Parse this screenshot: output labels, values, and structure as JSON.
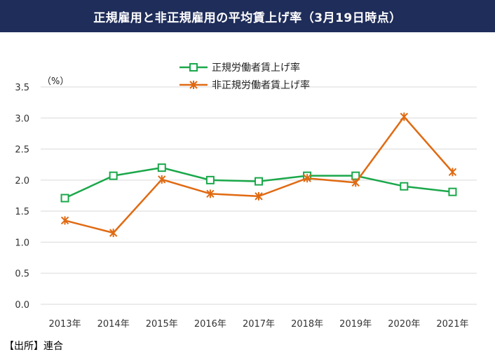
{
  "title": "正規雇用と非正規雇用の平均賃上げ率（3月19日時点）",
  "source": "【出所】連合",
  "colors": {
    "banner": "#1f2d5a",
    "regular": "#1aa84a",
    "nonregular": "#e06a12",
    "grid": "#d9d9d9"
  },
  "chart_data": {
    "type": "line",
    "title": "正規雇用と非正規雇用の平均賃上げ率（3月19日時点）",
    "ylabel": "（%）",
    "ylim": [
      0.0,
      3.5
    ],
    "yticks": [
      "0.0",
      "0.5",
      "1.0",
      "1.5",
      "2.0",
      "2.5",
      "3.0",
      "3.5"
    ],
    "ytick_values": [
      0.0,
      0.5,
      1.0,
      1.5,
      2.0,
      2.5,
      3.0,
      3.5
    ],
    "categories": [
      "2013年",
      "2014年",
      "2015年",
      "2016年",
      "2017年",
      "2018年",
      "2019年",
      "2020年",
      "2021年"
    ],
    "legend_position": "top-center",
    "series": [
      {
        "name": "正規労働者賃上げ率",
        "marker": "square",
        "values": [
          1.71,
          2.07,
          2.2,
          2.0,
          1.98,
          2.07,
          2.07,
          1.9,
          1.81
        ]
      },
      {
        "name": "非正規労働者賃上げ率",
        "marker": "x",
        "values": [
          1.35,
          1.15,
          2.01,
          1.78,
          1.74,
          2.03,
          1.96,
          3.02,
          2.13
        ]
      }
    ]
  }
}
